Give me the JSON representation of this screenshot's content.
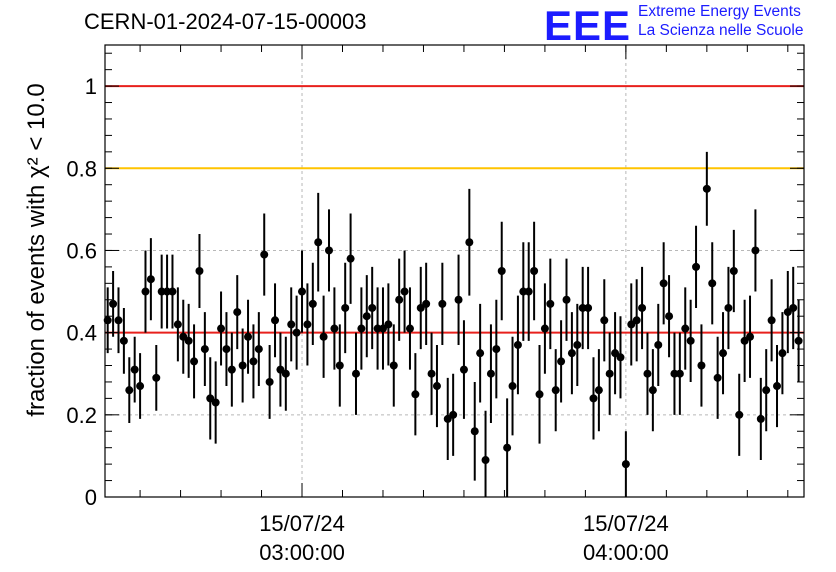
{
  "header": {
    "title": "CERN-01-2024-07-15-00003",
    "logo_text": "EEE",
    "org_line1": "Extreme Energy Events",
    "org_line2": "La Scienza nelle Scuole"
  },
  "chart_data": {
    "type": "scatter",
    "ylabel": "fraction of events with χ² < 10.0",
    "ylim": [
      0,
      1.1
    ],
    "yticks": [
      {
        "value": 0,
        "label": "0"
      },
      {
        "value": 0.2,
        "label": "0.2"
      },
      {
        "value": 0.4,
        "label": "0.4"
      },
      {
        "value": 0.6,
        "label": "0.6"
      },
      {
        "value": 0.8,
        "label": "0.8"
      },
      {
        "value": 1.0,
        "label": "1"
      }
    ],
    "xticks": [
      {
        "value": 60,
        "date": "15/07/24",
        "time": "03:00:00"
      },
      {
        "value": 120,
        "date": "15/07/24",
        "time": "04:00:00"
      }
    ],
    "xlim": [
      23.5,
      153
    ],
    "grid": true,
    "reference_lines": [
      {
        "y": 1.0,
        "color": "#e8201c"
      },
      {
        "y": 0.8,
        "color": "#ffc400"
      },
      {
        "y": 0.4,
        "color": "#e8201c"
      }
    ],
    "series": [
      {
        "x": [
          24,
          25,
          26,
          27,
          28,
          29,
          30,
          31,
          32,
          33,
          34,
          35,
          36,
          37,
          38,
          39,
          40,
          41,
          42,
          43,
          44,
          45,
          46,
          47,
          48,
          49,
          50,
          51,
          52,
          53,
          54,
          55,
          56,
          57,
          58,
          59,
          60,
          61,
          62,
          63,
          64,
          65,
          66,
          67,
          68,
          69,
          70,
          71,
          72,
          73,
          74,
          75,
          76,
          77,
          78,
          79,
          80,
          81,
          82,
          83,
          84,
          85,
          86,
          87,
          88,
          89,
          90,
          91,
          92,
          93,
          94,
          95,
          96,
          97,
          98,
          99,
          100,
          101,
          102,
          103,
          104,
          105,
          106,
          107,
          108,
          109,
          110,
          111,
          112,
          113,
          114,
          115,
          116,
          117,
          118,
          119,
          120,
          121,
          122,
          123,
          124,
          125,
          126,
          127,
          128,
          129,
          130,
          131,
          132,
          133,
          134,
          135,
          136,
          137,
          138,
          139,
          140,
          141,
          142,
          143,
          144,
          145,
          146,
          147,
          148,
          149,
          150,
          151,
          152
        ],
        "y": [
          0.43,
          0.47,
          0.43,
          0.38,
          0.26,
          0.31,
          0.27,
          0.5,
          0.53,
          0.29,
          0.5,
          0.5,
          0.5,
          0.42,
          0.39,
          0.38,
          0.33,
          0.55,
          0.36,
          0.24,
          0.23,
          0.41,
          0.36,
          0.31,
          0.45,
          0.32,
          0.39,
          0.33,
          0.36,
          0.59,
          0.28,
          0.43,
          0.31,
          0.3,
          0.42,
          0.4,
          0.5,
          0.42,
          0.47,
          0.62,
          0.39,
          0.6,
          0.41,
          0.32,
          0.46,
          0.58,
          0.3,
          0.41,
          0.44,
          0.46,
          0.41,
          0.41,
          0.42,
          0.32,
          0.48,
          0.5,
          0.41,
          0.25,
          0.46,
          0.47,
          0.3,
          0.27,
          0.47,
          0.19,
          0.2,
          0.48,
          0.31,
          0.62,
          0.16,
          0.35,
          0.09,
          0.3,
          0.36,
          0.55,
          0.12,
          0.27,
          0.37,
          0.5,
          0.5,
          0.55,
          0.25,
          0.41,
          0.47,
          0.26,
          0.33,
          0.48,
          0.35,
          0.37,
          0.46,
          0.46,
          0.24,
          0.26,
          0.43,
          0.3,
          0.35,
          0.34,
          0.08,
          0.42,
          0.43,
          0.46,
          0.3,
          0.26,
          0.37,
          0.52,
          0.44,
          0.3,
          0.3,
          0.41,
          0.38,
          0.56,
          0.32,
          0.75,
          0.52,
          0.29,
          0.35,
          0.46,
          0.55,
          0.2,
          0.38,
          0.39,
          0.6,
          0.19,
          0.26,
          0.43,
          0.27,
          0.35,
          0.45,
          0.46,
          0.38
        ],
        "err": [
          0.08,
          0.08,
          0.08,
          0.08,
          0.08,
          0.08,
          0.08,
          0.1,
          0.1,
          0.08,
          0.09,
          0.09,
          0.09,
          0.09,
          0.09,
          0.09,
          0.09,
          0.09,
          0.09,
          0.1,
          0.1,
          0.09,
          0.09,
          0.09,
          0.09,
          0.09,
          0.09,
          0.09,
          0.09,
          0.1,
          0.09,
          0.09,
          0.09,
          0.09,
          0.09,
          0.09,
          0.1,
          0.1,
          0.1,
          0.12,
          0.1,
          0.1,
          0.1,
          0.1,
          0.11,
          0.11,
          0.1,
          0.1,
          0.1,
          0.1,
          0.1,
          0.1,
          0.1,
          0.1,
          0.1,
          0.1,
          0.1,
          0.1,
          0.1,
          0.1,
          0.1,
          0.1,
          0.1,
          0.1,
          0.1,
          0.11,
          0.12,
          0.13,
          0.12,
          0.12,
          0.12,
          0.12,
          0.12,
          0.12,
          0.12,
          0.12,
          0.12,
          0.12,
          0.12,
          0.12,
          0.12,
          0.11,
          0.11,
          0.1,
          0.1,
          0.1,
          0.1,
          0.1,
          0.1,
          0.1,
          0.1,
          0.1,
          0.1,
          0.1,
          0.1,
          0.1,
          0.08,
          0.1,
          0.1,
          0.1,
          0.1,
          0.1,
          0.1,
          0.1,
          0.1,
          0.1,
          0.1,
          0.1,
          0.1,
          0.1,
          0.1,
          0.09,
          0.1,
          0.1,
          0.1,
          0.1,
          0.1,
          0.1,
          0.1,
          0.1,
          0.1,
          0.1,
          0.1,
          0.1,
          0.1,
          0.1,
          0.1,
          0.1,
          0.1
        ]
      }
    ]
  }
}
